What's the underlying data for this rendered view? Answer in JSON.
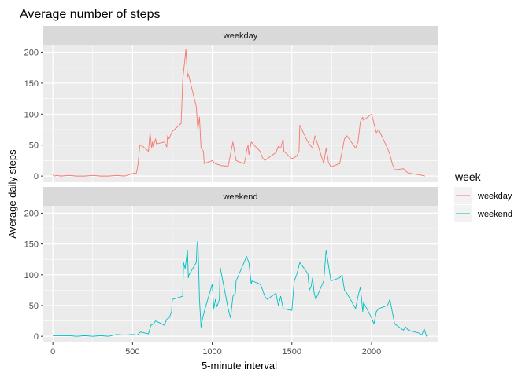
{
  "chart_data": {
    "type": "line",
    "title": "Average number of steps",
    "xlabel": "5-minute interval",
    "ylabel": "Average daily steps",
    "xlim": [
      -60,
      2415
    ],
    "ylim": [
      -10,
      212
    ],
    "x_ticks": [
      0,
      500,
      1000,
      1500,
      2000
    ],
    "y_ticks": [
      0,
      50,
      100,
      150,
      200
    ],
    "grid": true,
    "facets": [
      "weekday",
      "weekend"
    ],
    "legend": {
      "title": "week",
      "position": "right",
      "entries": [
        "weekday",
        "weekend"
      ]
    },
    "series": [
      {
        "name": "weekday",
        "color": "#F8766D",
        "x": [
          0,
          10,
          25,
          50,
          100,
          150,
          200,
          250,
          300,
          350,
          400,
          450,
          500,
          525,
          535,
          545,
          555,
          600,
          610,
          620,
          625,
          630,
          645,
          650,
          700,
          715,
          720,
          730,
          745,
          750,
          805,
          815,
          825,
          835,
          845,
          850,
          900,
          910,
          920,
          930,
          945,
          950,
          1000,
          1020,
          1045,
          1050,
          1100,
          1130,
          1150,
          1200,
          1210,
          1215,
          1225,
          1230,
          1245,
          1300,
          1315,
          1330,
          1345,
          1400,
          1415,
          1430,
          1445,
          1450,
          1500,
          1530,
          1545,
          1550,
          1600,
          1615,
          1630,
          1645,
          1700,
          1715,
          1730,
          1745,
          1800,
          1815,
          1830,
          1845,
          1900,
          1915,
          1930,
          1945,
          1950,
          2000,
          2015,
          2030,
          2045,
          2100,
          2115,
          2130,
          2145,
          2200,
          2215,
          2230,
          2300,
          2335
        ],
        "y": [
          2,
          0,
          1,
          0,
          1,
          0,
          0,
          1,
          0,
          0,
          1,
          0,
          4,
          5,
          20,
          49,
          50,
          40,
          70,
          45,
          55,
          48,
          60,
          52,
          55,
          47,
          65,
          60,
          70,
          72,
          85,
          155,
          180,
          205,
          160,
          165,
          112,
          75,
          95,
          45,
          40,
          20,
          25,
          20,
          18,
          17,
          16,
          55,
          25,
          20,
          30,
          40,
          50,
          35,
          55,
          40,
          30,
          25,
          28,
          38,
          48,
          45,
          60,
          40,
          28,
          32,
          40,
          82,
          55,
          50,
          45,
          65,
          20,
          45,
          22,
          15,
          20,
          40,
          60,
          65,
          45,
          55,
          88,
          95,
          90,
          100,
          85,
          70,
          75,
          45,
          35,
          20,
          10,
          12,
          8,
          5,
          2,
          0
        ]
      },
      {
        "name": "weekend",
        "color": "#00BFC4",
        "x": [
          0,
          50,
          100,
          150,
          200,
          250,
          300,
          350,
          400,
          450,
          500,
          530,
          550,
          600,
          615,
          630,
          645,
          700,
          715,
          730,
          745,
          750,
          815,
          820,
          830,
          840,
          845,
          850,
          855,
          900,
          905,
          910,
          915,
          920,
          930,
          940,
          950,
          1000,
          1010,
          1020,
          1030,
          1045,
          1050,
          1100,
          1115,
          1130,
          1145,
          1150,
          1200,
          1215,
          1230,
          1245,
          1250,
          1300,
          1310,
          1330,
          1345,
          1400,
          1415,
          1430,
          1445,
          1500,
          1515,
          1530,
          1545,
          1550,
          1600,
          1610,
          1620,
          1630,
          1640,
          1650,
          1700,
          1715,
          1730,
          1745,
          1800,
          1815,
          1830,
          1845,
          1900,
          1915,
          1930,
          1945,
          1950,
          2000,
          2015,
          2030,
          2045,
          2100,
          2115,
          2130,
          2145,
          2200,
          2215,
          2230,
          2300,
          2315,
          2330,
          2345,
          2355
        ],
        "y": [
          1,
          1,
          1,
          0,
          1,
          0,
          1,
          0,
          3,
          2,
          3,
          2,
          7,
          4,
          18,
          20,
          25,
          18,
          28,
          30,
          40,
          60,
          65,
          120,
          110,
          130,
          140,
          95,
          100,
          120,
          150,
          155,
          110,
          60,
          15,
          30,
          40,
          85,
          45,
          60,
          48,
          60,
          112,
          45,
          30,
          65,
          70,
          90,
          120,
          130,
          120,
          85,
          90,
          85,
          80,
          65,
          60,
          70,
          50,
          65,
          45,
          42,
          90,
          100,
          115,
          120,
          102,
          75,
          80,
          95,
          70,
          60,
          90,
          140,
          115,
          90,
          95,
          100,
          75,
          70,
          45,
          65,
          80,
          40,
          55,
          30,
          20,
          40,
          45,
          50,
          60,
          40,
          20,
          10,
          15,
          10,
          5,
          2,
          12,
          0,
          2
        ]
      }
    ]
  }
}
